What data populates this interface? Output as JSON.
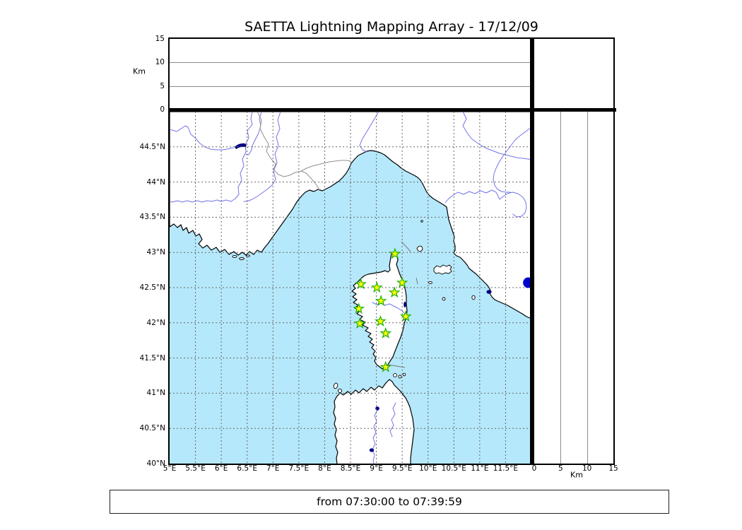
{
  "title": "SAETTA Lightning Mapping Array - 17/12/09",
  "footer": "from 07:30:00 to 07:39:59",
  "colors": {
    "sea": "#b5e8fa",
    "land": "#ffffff",
    "coast": "#000000",
    "river": "#7373e8",
    "country_border": "#909090",
    "grid": "#666666",
    "panel_grid": "#8a8a8a",
    "star_fill": "#ffff00",
    "star_stroke": "#1faf00",
    "event_dot": "#0000cc",
    "lake": "#000080"
  },
  "top_panel": {
    "axis_label": "Km",
    "alt_max": 15,
    "ticks": [
      {
        "v": 15,
        "label": "15"
      },
      {
        "v": 10,
        "label": "10"
      },
      {
        "v": 5,
        "label": "5"
      },
      {
        "v": 0,
        "label": "0"
      }
    ]
  },
  "right_panel": {
    "axis_label": "Km",
    "alt_max": 15,
    "ticks": [
      {
        "v": 0,
        "label": "0"
      },
      {
        "v": 5,
        "label": "5"
      },
      {
        "v": 10,
        "label": "10"
      },
      {
        "v": 15,
        "label": "15"
      }
    ]
  },
  "map": {
    "lon_min": 5,
    "lon_max": 12,
    "lat_min": 40,
    "lat_max": 45,
    "lon_ticks": [
      {
        "v": 5,
        "label": "5°E"
      },
      {
        "v": 5.5,
        "label": "5.5°E"
      },
      {
        "v": 6,
        "label": "6°E"
      },
      {
        "v": 6.5,
        "label": "6.5°E"
      },
      {
        "v": 7,
        "label": "7°E"
      },
      {
        "v": 7.5,
        "label": "7.5°E"
      },
      {
        "v": 8,
        "label": "8°E"
      },
      {
        "v": 8.5,
        "label": "8.5°E"
      },
      {
        "v": 9,
        "label": "9°E"
      },
      {
        "v": 9.5,
        "label": "9.5°E"
      },
      {
        "v": 10,
        "label": "10°E"
      },
      {
        "v": 10.5,
        "label": "10.5°E"
      },
      {
        "v": 11,
        "label": "11°E"
      },
      {
        "v": 11.5,
        "label": "11.5°E"
      }
    ],
    "lat_ticks": [
      {
        "v": 44.5,
        "label": "44.5°N"
      },
      {
        "v": 44,
        "label": "44°N"
      },
      {
        "v": 43.5,
        "label": "43.5°N"
      },
      {
        "v": 43,
        "label": "43°N"
      },
      {
        "v": 42.5,
        "label": "42.5°N"
      },
      {
        "v": 42,
        "label": "42°N"
      },
      {
        "v": 41.5,
        "label": "41.5°N"
      },
      {
        "v": 41,
        "label": "41°N"
      },
      {
        "v": 40.5,
        "label": "40.5°N"
      },
      {
        "v": 40,
        "label": "40°N"
      }
    ],
    "grid_lon": [
      5.5,
      6,
      6.5,
      7,
      7.5,
      8,
      8.5,
      9,
      9.5,
      10,
      10.5,
      11,
      11.5
    ],
    "grid_lat": [
      44.5,
      44,
      43.5,
      43,
      42.5,
      42,
      41.5,
      41,
      40.5
    ],
    "stations": [
      {
        "lon": 9.36,
        "lat": 42.98
      },
      {
        "lon": 8.7,
        "lat": 42.55
      },
      {
        "lon": 9.01,
        "lat": 42.5
      },
      {
        "lon": 9.5,
        "lat": 42.57
      },
      {
        "lon": 9.35,
        "lat": 42.43
      },
      {
        "lon": 9.09,
        "lat": 42.31
      },
      {
        "lon": 8.66,
        "lat": 42.2
      },
      {
        "lon": 9.57,
        "lat": 42.09
      },
      {
        "lon": 9.08,
        "lat": 42.02
      },
      {
        "lon": 8.68,
        "lat": 41.99
      },
      {
        "lon": 9.18,
        "lat": 41.85
      },
      {
        "lon": 9.18,
        "lat": 41.37
      }
    ],
    "event_dot": {
      "lon": 11.94,
      "lat": 42.57
    }
  }
}
